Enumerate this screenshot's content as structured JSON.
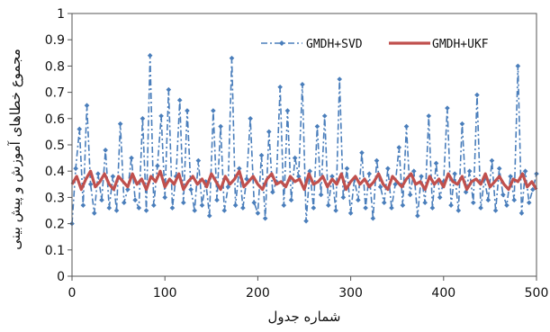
{
  "chart_data": {
    "type": "line",
    "xlabel": "شماره جدول",
    "ylabel": "مجموع خطاهای آموزش و پیش بینی",
    "xlim": [
      0,
      500
    ],
    "ylim": [
      0,
      1
    ],
    "x_ticks": [
      "0",
      "100",
      "200",
      "300",
      "400",
      "500"
    ],
    "y_ticks": [
      "0",
      "0.1",
      "0.2",
      "0.3",
      "0.4",
      "0.5",
      "0.6",
      "0.7",
      "0.8",
      "0.9",
      "1"
    ],
    "grid": false,
    "legend_position": "top-right",
    "series": [
      {
        "name": "GMDH+SVD",
        "color": "#4a7ebb",
        "style": "dash-dot with diamond markers",
        "x": [
          0,
          4,
          8,
          12,
          16,
          20,
          24,
          28,
          32,
          36,
          40,
          44,
          48,
          52,
          56,
          60,
          64,
          68,
          72,
          76,
          80,
          84,
          88,
          92,
          96,
          100,
          104,
          108,
          112,
          116,
          120,
          124,
          128,
          132,
          136,
          140,
          144,
          148,
          152,
          156,
          160,
          164,
          168,
          172,
          176,
          180,
          184,
          188,
          192,
          196,
          200,
          204,
          208,
          212,
          216,
          220,
          224,
          228,
          232,
          236,
          240,
          244,
          248,
          252,
          256,
          260,
          264,
          268,
          272,
          276,
          280,
          284,
          288,
          292,
          296,
          300,
          304,
          308,
          312,
          316,
          320,
          324,
          328,
          332,
          336,
          340,
          344,
          348,
          352,
          356,
          360,
          364,
          368,
          372,
          376,
          380,
          384,
          388,
          392,
          396,
          400,
          404,
          408,
          412,
          416,
          420,
          424,
          428,
          432,
          436,
          440,
          444,
          448,
          452,
          456,
          460,
          464,
          468,
          472,
          476,
          480,
          484,
          488,
          492,
          496,
          500
        ],
        "values": [
          0.2,
          0.41,
          0.56,
          0.27,
          0.65,
          0.35,
          0.24,
          0.39,
          0.29,
          0.48,
          0.26,
          0.38,
          0.25,
          0.58,
          0.28,
          0.33,
          0.45,
          0.29,
          0.26,
          0.6,
          0.25,
          0.84,
          0.27,
          0.42,
          0.61,
          0.3,
          0.71,
          0.26,
          0.38,
          0.67,
          0.28,
          0.63,
          0.33,
          0.25,
          0.44,
          0.27,
          0.36,
          0.23,
          0.63,
          0.29,
          0.57,
          0.25,
          0.34,
          0.83,
          0.27,
          0.41,
          0.26,
          0.37,
          0.6,
          0.28,
          0.24,
          0.46,
          0.22,
          0.55,
          0.32,
          0.36,
          0.72,
          0.27,
          0.63,
          0.29,
          0.45,
          0.38,
          0.73,
          0.21,
          0.4,
          0.26,
          0.57,
          0.31,
          0.61,
          0.27,
          0.38,
          0.25,
          0.75,
          0.3,
          0.41,
          0.24,
          0.37,
          0.29,
          0.47,
          0.26,
          0.39,
          0.22,
          0.44,
          0.34,
          0.28,
          0.41,
          0.26,
          0.35,
          0.49,
          0.27,
          0.57,
          0.31,
          0.4,
          0.23,
          0.38,
          0.28,
          0.61,
          0.26,
          0.43,
          0.3,
          0.36,
          0.64,
          0.27,
          0.39,
          0.25,
          0.58,
          0.32,
          0.4,
          0.28,
          0.69,
          0.26,
          0.37,
          0.29,
          0.44,
          0.25,
          0.41,
          0.31,
          0.27,
          0.38,
          0.29,
          0.8,
          0.24,
          0.4,
          0.28,
          0.33,
          0.39
        ]
      },
      {
        "name": "GMDH+UKF",
        "color": "#c0504d",
        "style": "thick solid line",
        "x": [
          0,
          5,
          10,
          15,
          20,
          25,
          30,
          35,
          40,
          45,
          50,
          55,
          60,
          65,
          70,
          75,
          80,
          85,
          90,
          95,
          100,
          105,
          110,
          115,
          120,
          125,
          130,
          135,
          140,
          145,
          150,
          155,
          160,
          165,
          170,
          175,
          180,
          185,
          190,
          195,
          200,
          205,
          210,
          215,
          220,
          225,
          230,
          235,
          240,
          245,
          250,
          255,
          260,
          265,
          270,
          275,
          280,
          285,
          290,
          295,
          300,
          305,
          310,
          315,
          320,
          325,
          330,
          335,
          340,
          345,
          350,
          355,
          360,
          365,
          370,
          375,
          380,
          385,
          390,
          395,
          400,
          405,
          410,
          415,
          420,
          425,
          430,
          435,
          440,
          445,
          450,
          455,
          460,
          465,
          470,
          475,
          480,
          485,
          490,
          495,
          500
        ],
        "values": [
          0.35,
          0.38,
          0.33,
          0.37,
          0.4,
          0.34,
          0.36,
          0.39,
          0.35,
          0.33,
          0.38,
          0.36,
          0.34,
          0.39,
          0.35,
          0.37,
          0.33,
          0.38,
          0.36,
          0.4,
          0.34,
          0.37,
          0.35,
          0.39,
          0.33,
          0.36,
          0.38,
          0.35,
          0.37,
          0.34,
          0.39,
          0.36,
          0.33,
          0.38,
          0.35,
          0.37,
          0.4,
          0.34,
          0.36,
          0.38,
          0.35,
          0.33,
          0.37,
          0.39,
          0.35,
          0.36,
          0.34,
          0.38,
          0.36,
          0.37,
          0.33,
          0.39,
          0.35,
          0.36,
          0.38,
          0.34,
          0.37,
          0.35,
          0.39,
          0.33,
          0.36,
          0.38,
          0.35,
          0.37,
          0.34,
          0.36,
          0.39,
          0.35,
          0.33,
          0.38,
          0.36,
          0.34,
          0.37,
          0.39,
          0.35,
          0.36,
          0.33,
          0.38,
          0.35,
          0.37,
          0.34,
          0.39,
          0.36,
          0.35,
          0.38,
          0.33,
          0.36,
          0.37,
          0.35,
          0.39,
          0.34,
          0.36,
          0.38,
          0.35,
          0.33,
          0.37,
          0.36,
          0.39,
          0.34,
          0.36,
          0.33
        ]
      }
    ]
  }
}
